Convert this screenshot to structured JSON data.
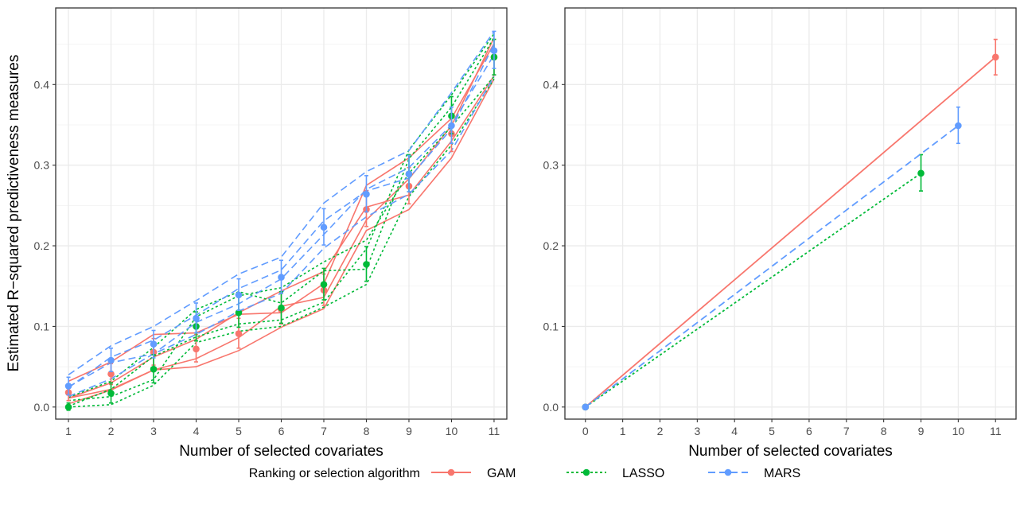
{
  "figure": {
    "ylabel": "Estimated R−squared predictiveness measures",
    "legend": {
      "title": "Ranking or selection algorithm",
      "position": "bottom",
      "entries": [
        {
          "name": "GAM",
          "color": "#F8766D",
          "linestyle": "solid"
        },
        {
          "name": "LASSO",
          "color": "#00BA38",
          "linestyle": "dotted"
        },
        {
          "name": "MARS",
          "color": "#619CFF",
          "linestyle": "dashed"
        }
      ]
    }
  },
  "chart_data": [
    {
      "type": "line",
      "panel": "left",
      "xlabel": "Number of selected covariates",
      "ylabel": "Estimated R−squared predictiveness measures",
      "xlim": [
        0.7,
        11.3
      ],
      "ylim": [
        -0.015,
        0.495
      ],
      "x_ticks": [
        1,
        2,
        3,
        4,
        5,
        6,
        7,
        8,
        9,
        10,
        11
      ],
      "y_ticks": [
        0.0,
        0.1,
        0.2,
        0.3,
        0.4
      ],
      "y_tick_labels": [
        "0.0",
        "0.1",
        "0.2",
        "0.3",
        "0.4"
      ],
      "grid": true,
      "series": [
        {
          "name": "GAM",
          "color": "#F8766D",
          "linestyle": "solid",
          "points": [
            {
              "x": 1,
              "y": 0.018,
              "lo": 0.008,
              "hi": 0.028
            },
            {
              "x": 2,
              "y": 0.041,
              "lo": 0.028,
              "hi": 0.054
            },
            {
              "x": 3,
              "y": 0.068,
              "lo": 0.052,
              "hi": 0.085
            },
            {
              "x": 4,
              "y": 0.072,
              "lo": 0.056,
              "hi": 0.09
            },
            {
              "x": 5,
              "y": 0.091,
              "lo": 0.073,
              "hi": 0.11
            },
            {
              "x": 6,
              "y": 0.121,
              "lo": 0.103,
              "hi": 0.141
            },
            {
              "x": 7,
              "y": 0.145,
              "lo": 0.126,
              "hi": 0.165
            },
            {
              "x": 8,
              "y": 0.245,
              "lo": 0.224,
              "hi": 0.268
            },
            {
              "x": 9,
              "y": 0.274,
              "lo": 0.252,
              "hi": 0.297
            },
            {
              "x": 10,
              "y": 0.339,
              "lo": 0.317,
              "hi": 0.363
            },
            {
              "x": 11,
              "y": 0.434,
              "lo": 0.412,
              "hi": 0.456
            }
          ],
          "band_lines": [
            [
              0.004,
              0.021,
              0.046,
              0.05,
              0.07,
              0.099,
              0.122,
              0.219,
              0.245,
              0.309,
              0.407
            ],
            [
              0.011,
              0.03,
              0.062,
              0.084,
              0.117,
              0.144,
              0.168,
              0.248,
              0.263,
              0.33,
              0.411
            ],
            [
              0.032,
              0.056,
              0.09,
              0.092,
              0.115,
              0.117,
              0.153,
              0.275,
              0.309,
              0.358,
              0.451
            ],
            [
              0.011,
              0.022,
              0.046,
              0.06,
              0.086,
              0.125,
              0.136,
              0.232,
              0.283,
              0.349,
              0.458
            ]
          ]
        },
        {
          "name": "LASSO",
          "color": "#00BA38",
          "linestyle": "dotted",
          "points": [
            {
              "x": 1,
              "y": 0.0,
              "lo": -0.004,
              "hi": 0.005
            },
            {
              "x": 2,
              "y": 0.017,
              "lo": 0.005,
              "hi": 0.03
            },
            {
              "x": 3,
              "y": 0.047,
              "lo": 0.03,
              "hi": 0.065
            },
            {
              "x": 4,
              "y": 0.1,
              "lo": 0.082,
              "hi": 0.118
            },
            {
              "x": 5,
              "y": 0.117,
              "lo": 0.099,
              "hi": 0.137
            },
            {
              "x": 6,
              "y": 0.123,
              "lo": 0.104,
              "hi": 0.143
            },
            {
              "x": 7,
              "y": 0.152,
              "lo": 0.133,
              "hi": 0.172
            },
            {
              "x": 8,
              "y": 0.177,
              "lo": 0.156,
              "hi": 0.199
            },
            {
              "x": 9,
              "y": 0.289,
              "lo": 0.267,
              "hi": 0.313
            },
            {
              "x": 10,
              "y": 0.361,
              "lo": 0.339,
              "hi": 0.385
            },
            {
              "x": 11,
              "y": 0.434,
              "lo": 0.412,
              "hi": 0.456
            }
          ],
          "band_lines": [
            [
              0.0,
              0.003,
              0.027,
              0.08,
              0.094,
              0.1,
              0.124,
              0.152,
              0.261,
              0.325,
              0.407
            ],
            [
              0.008,
              0.013,
              0.034,
              0.112,
              0.138,
              0.148,
              0.18,
              0.207,
              0.29,
              0.348,
              0.41
            ],
            [
              0.001,
              0.022,
              0.063,
              0.087,
              0.103,
              0.108,
              0.13,
              0.196,
              0.319,
              0.387,
              0.463
            ],
            [
              0.012,
              0.032,
              0.074,
              0.121,
              0.143,
              0.129,
              0.169,
              0.171,
              0.308,
              0.372,
              0.458
            ]
          ]
        },
        {
          "name": "MARS",
          "color": "#619CFF",
          "linestyle": "dashed",
          "points": [
            {
              "x": 1,
              "y": 0.026,
              "lo": 0.015,
              "hi": 0.037
            },
            {
              "x": 2,
              "y": 0.058,
              "lo": 0.044,
              "hi": 0.073
            },
            {
              "x": 3,
              "y": 0.078,
              "lo": 0.061,
              "hi": 0.095
            },
            {
              "x": 4,
              "y": 0.11,
              "lo": 0.092,
              "hi": 0.129
            },
            {
              "x": 5,
              "y": 0.139,
              "lo": 0.12,
              "hi": 0.159
            },
            {
              "x": 6,
              "y": 0.161,
              "lo": 0.141,
              "hi": 0.182
            },
            {
              "x": 7,
              "y": 0.223,
              "lo": 0.201,
              "hi": 0.246
            },
            {
              "x": 8,
              "y": 0.264,
              "lo": 0.242,
              "hi": 0.287
            },
            {
              "x": 9,
              "y": 0.289,
              "lo": 0.267,
              "hi": 0.312
            },
            {
              "x": 10,
              "y": 0.349,
              "lo": 0.327,
              "hi": 0.372
            },
            {
              "x": 11,
              "y": 0.442,
              "lo": 0.42,
              "hi": 0.466
            }
          ],
          "band_lines": [
            [
              0.04,
              0.076,
              0.1,
              0.132,
              0.165,
              0.186,
              0.253,
              0.292,
              0.318,
              0.39,
              0.466
            ],
            [
              0.013,
              0.035,
              0.066,
              0.09,
              0.119,
              0.141,
              0.197,
              0.236,
              0.264,
              0.318,
              0.41
            ],
            [
              0.025,
              0.055,
              0.066,
              0.105,
              0.128,
              0.159,
              0.214,
              0.27,
              0.297,
              0.35,
              0.437
            ],
            [
              0.024,
              0.062,
              0.083,
              0.114,
              0.147,
              0.17,
              0.231,
              0.268,
              0.284,
              0.345,
              0.45
            ]
          ]
        }
      ]
    },
    {
      "type": "line",
      "panel": "right",
      "xlabel": "Number of selected covariates",
      "ylabel": "",
      "xlim": [
        -0.55,
        11.55
      ],
      "ylim": [
        -0.015,
        0.495
      ],
      "x_ticks": [
        0,
        1,
        2,
        3,
        4,
        5,
        6,
        7,
        8,
        9,
        10,
        11
      ],
      "y_ticks": [
        0.0,
        0.1,
        0.2,
        0.3,
        0.4
      ],
      "y_tick_labels": [
        "0.0",
        "0.1",
        "0.2",
        "0.3",
        "0.4"
      ],
      "grid": true,
      "series": [
        {
          "name": "GAM",
          "color": "#F8766D",
          "linestyle": "solid",
          "points": [
            {
              "x": 0,
              "y": 0.0,
              "lo": 0.0,
              "hi": 0.0
            },
            {
              "x": 11,
              "y": 0.434,
              "lo": 0.412,
              "hi": 0.456
            }
          ]
        },
        {
          "name": "LASSO",
          "color": "#00BA38",
          "linestyle": "dotted",
          "points": [
            {
              "x": 0,
              "y": 0.0,
              "lo": 0.0,
              "hi": 0.0
            },
            {
              "x": 9,
              "y": 0.29,
              "lo": 0.268,
              "hi": 0.313
            }
          ]
        },
        {
          "name": "MARS",
          "color": "#619CFF",
          "linestyle": "dashed",
          "points": [
            {
              "x": 0,
              "y": 0.0,
              "lo": 0.0,
              "hi": 0.0
            },
            {
              "x": 10,
              "y": 0.349,
              "lo": 0.327,
              "hi": 0.372
            }
          ]
        }
      ]
    }
  ]
}
